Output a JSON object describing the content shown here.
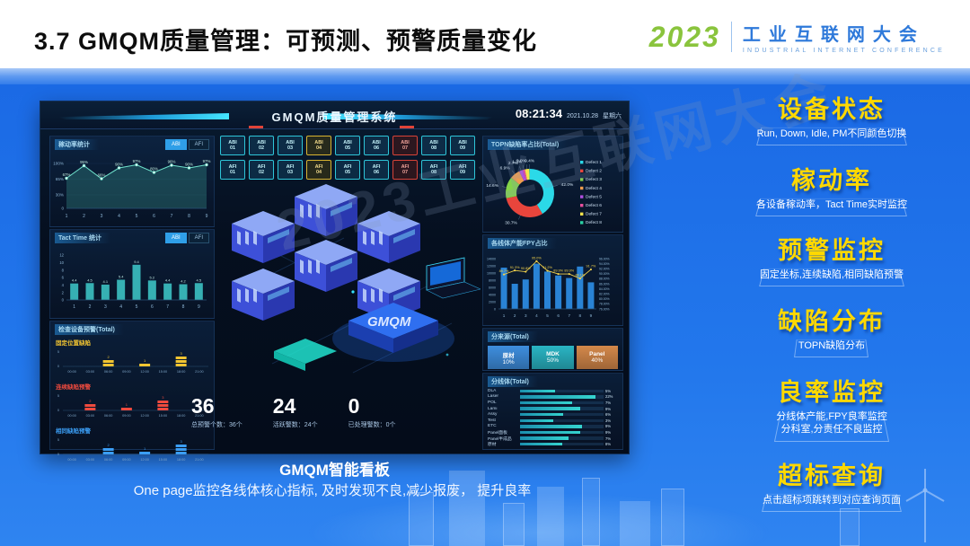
{
  "slide": {
    "title": "3.7 GMQM质量管理：可预测、预警质量变化",
    "logo": {
      "year": "2023",
      "name": "工业互联网大会",
      "subtitle": "INDUSTRIAL INTERNET CONFERENCE"
    },
    "caption_title": "GMQM智能看板",
    "caption_text": "One page监控各线体核心指标, 及时发现不良,减少报废， 提升良率",
    "watermark": "2023工业互联网大会"
  },
  "dashboard": {
    "title": "GMQM质量管理系统",
    "clock": {
      "time": "08:21:34",
      "date": "2021.10.28",
      "weekday": "星期六"
    },
    "illustration_label": "GMQM",
    "equipment_grid": {
      "rows": [
        {
          "cells": [
            {
              "line1": "ABI",
              "line2": "01",
              "status": "ok"
            },
            {
              "line1": "ABI",
              "line2": "02",
              "status": "ok"
            },
            {
              "line1": "ABI",
              "line2": "03",
              "status": "ok"
            },
            {
              "line1": "ABI",
              "line2": "04",
              "status": "warn"
            },
            {
              "line1": "ABI",
              "line2": "05",
              "status": "ok"
            },
            {
              "line1": "ABI",
              "line2": "06",
              "status": "ok"
            },
            {
              "line1": "ABI",
              "line2": "07",
              "status": "alarm"
            },
            {
              "line1": "ABI",
              "line2": "08",
              "status": "ok"
            },
            {
              "line1": "ABI",
              "line2": "09",
              "status": "ok"
            }
          ]
        },
        {
          "cells": [
            {
              "line1": "AFI",
              "line2": "01",
              "status": "ok"
            },
            {
              "line1": "AFI",
              "line2": "02",
              "status": "ok"
            },
            {
              "line1": "AFI",
              "line2": "03",
              "status": "ok"
            },
            {
              "line1": "AFI",
              "line2": "04",
              "status": "warn"
            },
            {
              "line1": "AFI",
              "line2": "05",
              "status": "ok"
            },
            {
              "line1": "AFI",
              "line2": "06",
              "status": "ok"
            },
            {
              "line1": "AFI",
              "line2": "07",
              "status": "alarm"
            },
            {
              "line1": "AFI",
              "line2": "08",
              "status": "ok"
            },
            {
              "line1": "AFI",
              "line2": "09",
              "status": "ok"
            }
          ]
        }
      ]
    },
    "alarm_stats": [
      {
        "value": "36",
        "label": "总预警个数：36个"
      },
      {
        "value": "24",
        "label": "活跃警数：24个"
      },
      {
        "value": "0",
        "label": "已处理警数：0个"
      }
    ]
  },
  "chart_data": [
    {
      "id": "utilization",
      "type": "area-line",
      "title": "稼动率统计",
      "toggle": [
        "ABI",
        "AFI"
      ],
      "active_toggle": "ABI",
      "x": [
        "1",
        "2",
        "3",
        "4",
        "5",
        "6",
        "7",
        "8",
        "9"
      ],
      "values": [
        67,
        95,
        66,
        90,
        97,
        80,
        96,
        90,
        97
      ],
      "point_labels": [
        "67%",
        "95%",
        "66%",
        "90%",
        "97%",
        "80%",
        "96%",
        "90%",
        "97%"
      ],
      "yticks": [
        {
          "label": "100%",
          "v": 100
        },
        {
          "label": "65%",
          "v": 65
        },
        {
          "label": "30%",
          "v": 30
        },
        {
          "label": "0",
          "v": 0
        }
      ],
      "ylim": [
        0,
        100
      ],
      "color": "#6fe3cd"
    },
    {
      "id": "tact",
      "type": "bar",
      "title": "Tact Time 统计",
      "toggle": [
        "ABI",
        "AFI"
      ],
      "active_toggle": "ABI",
      "x": [
        "1",
        "2",
        "3",
        "4",
        "5",
        "6",
        "7",
        "8",
        "9"
      ],
      "values": [
        4.4,
        4.5,
        4.1,
        5.4,
        9.4,
        5.2,
        4.4,
        4.2,
        4.5
      ],
      "point_labels": [
        "4.4",
        "4.5",
        "4.1",
        "5.4",
        "9.4",
        "5.2",
        "4.4",
        "4.2",
        "4.5"
      ],
      "yticks": [
        {
          "label": "12",
          "v": 12
        },
        {
          "label": "10",
          "v": 10
        },
        {
          "label": "8",
          "v": 8
        },
        {
          "label": "6",
          "v": 6
        },
        {
          "label": "4",
          "v": 4
        },
        {
          "label": "2",
          "v": 2
        },
        {
          "label": "0",
          "v": 0
        }
      ],
      "ylim": [
        0,
        12
      ],
      "color": "#3ecbcb"
    },
    {
      "id": "warnings",
      "type": "bar",
      "title": "检查设备预警(Total)",
      "categories": [
        "00:00",
        "03:00",
        "06:00",
        "09:00",
        "12:00",
        "15:00",
        "18:00",
        "21:00"
      ],
      "ylim": [
        0,
        5
      ],
      "series": [
        {
          "name": "固定位置缺陷",
          "color": "#f2c531",
          "values": [
            0,
            0,
            2,
            0,
            1,
            0,
            3,
            0
          ]
        },
        {
          "name": "连续缺陷预警",
          "color": "#ef4a3e",
          "values": [
            0,
            2,
            0,
            1,
            0,
            3,
            0,
            0
          ]
        },
        {
          "name": "相同缺陷预警",
          "color": "#3b9ef5",
          "values": [
            0,
            0,
            2,
            0,
            1,
            0,
            3,
            0
          ]
        }
      ]
    },
    {
      "id": "defect_share",
      "type": "donut",
      "title": "TOPN缺陷率占比(Total)",
      "slices": [
        {
          "label": "42.0%",
          "value": 42.0,
          "color": "#2bd9e8"
        },
        {
          "label": "30.7%",
          "value": 30.7,
          "color": "#e8453c"
        },
        {
          "label": "14.6%",
          "value": 14.6,
          "color": "#84d44a"
        },
        {
          "label": "6.9%",
          "value": 6.9,
          "color": "#f09d4e"
        },
        {
          "label": "2.7%",
          "value": 2.7,
          "color": "#b14fe0"
        },
        {
          "label": "1.3%",
          "value": 1.3,
          "color": "#e84f9e"
        },
        {
          "label": "3.0%",
          "value": 3.0,
          "color": "#f5e34b"
        },
        {
          "label": "0.4%",
          "value": 0.4,
          "color": "#2ad1a3"
        }
      ],
      "legend": [
        "Defect 1",
        "Defect 2",
        "Defect 3",
        "Defect 4",
        "Defect 5",
        "Defect 6",
        "Defect 7",
        "Defect 8"
      ]
    },
    {
      "id": "fpy",
      "type": "bar-line",
      "title": "各线体产能FPY占比",
      "x": [
        "1",
        "2",
        "3",
        "4",
        "5",
        "6",
        "7",
        "8",
        "9"
      ],
      "bars": [
        11500,
        7000,
        8200,
        12600,
        10400,
        9300,
        8600,
        11800,
        7400
      ],
      "line": [
        89.7,
        91.3,
        90.8,
        95.0,
        91.2,
        89.9,
        89.9,
        88.1,
        91.7
      ],
      "line_labels": [
        "89.7%",
        "91.3%",
        "90.8%",
        "95.0%",
        "91.2%",
        "89.9%",
        "89.9%",
        "88.1%",
        "91.7%"
      ],
      "left_ticks": [
        "14000",
        "12000",
        "10000",
        "8000",
        "6000",
        "4000",
        "2000",
        "0"
      ],
      "right_ticks": [
        "96.00%",
        "94.00%",
        "92.00%",
        "90.00%",
        "88.00%",
        "86.00%",
        "84.00%",
        "82.00%",
        "80.00%",
        "78.00%",
        "76.00%"
      ],
      "left_lim": [
        0,
        14000
      ],
      "right_lim": [
        76,
        96
      ],
      "bar_color": "#2e8fe8",
      "line_color": "#f2d24b"
    },
    {
      "id": "source_share",
      "type": "table",
      "title": "分来源(Total)",
      "blocks": [
        {
          "label": "原材",
          "value": "10%",
          "color": "#3e8ede"
        },
        {
          "label": "MDK",
          "value": "50%",
          "color": "#2ab5c4"
        },
        {
          "label": "Panel",
          "value": "40%",
          "color": "#d4884a"
        }
      ]
    },
    {
      "id": "by_line",
      "type": "bar",
      "title": "分线体(Total)",
      "items": [
        {
          "label": "DLA",
          "value": "5%",
          "pct": 42
        },
        {
          "label": "Laser",
          "value": "22%",
          "pct": 90
        },
        {
          "label": "POL",
          "value": "7%",
          "pct": 62
        },
        {
          "label": "Lami",
          "value": "9%",
          "pct": 72
        },
        {
          "label": "Assy",
          "value": "6%",
          "pct": 52
        },
        {
          "label": "Test",
          "value": "3%",
          "pct": 40
        },
        {
          "label": "ETC",
          "value": "9%",
          "pct": 74
        },
        {
          "label": "Panel面板",
          "value": "9%",
          "pct": 72
        },
        {
          "label": "Panel半成品",
          "value": "7%",
          "pct": 58
        },
        {
          "label": "原材",
          "value": "8%",
          "pct": 50
        }
      ]
    }
  ],
  "sidebar": {
    "items": [
      {
        "title": "设备状态",
        "desc": [
          "Run, Down, Idle, PM不同颜色切换"
        ]
      },
      {
        "title": "稼动率",
        "desc": [
          "各设备稼动率，Tact Time实时监控"
        ]
      },
      {
        "title": "预警监控",
        "desc": [
          "固定坐标,连续缺陷,相同缺陷预警"
        ]
      },
      {
        "title": "缺陷分布",
        "desc": [
          "TOPN缺陷分布"
        ]
      },
      {
        "title": "良率监控",
        "desc": [
          "分线体产能,FPY良率监控",
          "分科室,分责任不良监控"
        ]
      },
      {
        "title": "超标查询",
        "desc": [
          "点击超标项跳转到对应查询页面"
        ]
      }
    ]
  }
}
